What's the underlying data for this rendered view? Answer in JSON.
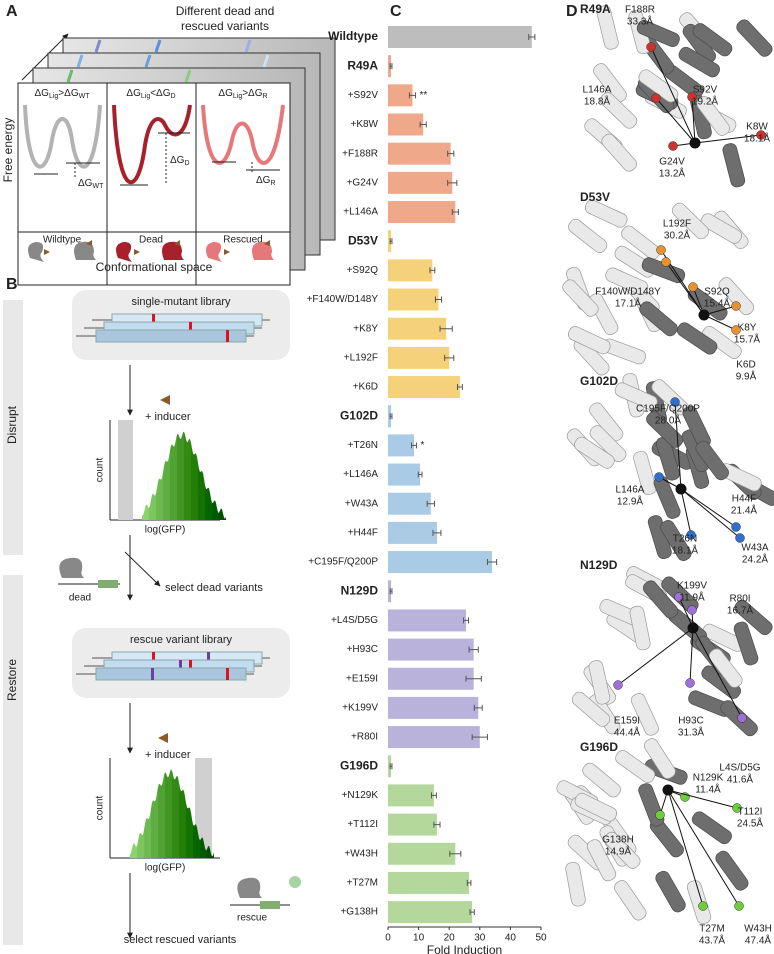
{
  "panel_a": {
    "label": "A",
    "top_caption": [
      "Different dead and",
      "rescued variants"
    ],
    "y_label": "Free energy",
    "x_label": "Conformational space",
    "states": [
      {
        "name": "Wildtype",
        "condition": [
          "ΔG",
          "Lig",
          ">ΔG",
          "WT"
        ],
        "gap": [
          "ΔG",
          "WT"
        ]
      },
      {
        "name": "Dead",
        "condition": [
          "ΔG",
          "Lig",
          "<ΔG",
          "D"
        ],
        "gap": [
          "ΔG",
          "D"
        ]
      },
      {
        "name": "Rescued",
        "condition": [
          "ΔG",
          "Lig",
          ">ΔG",
          "R"
        ],
        "gap": [
          "ΔG",
          "R"
        ]
      }
    ]
  },
  "panel_b": {
    "label": "B",
    "stages": [
      {
        "name": "Disrupt",
        "library": "single-mutant library",
        "inducer": "+ inducer",
        "y_label": "count",
        "x_label": "log(GFP)",
        "icon_label": "dead",
        "selection": "select dead variants"
      },
      {
        "name": "Restore",
        "library": "rescue variant library",
        "inducer": "+ inducer",
        "y_label": "count",
        "x_label": "log(GFP)",
        "icon_label": "rescue",
        "selection": "select rescued variants"
      }
    ]
  },
  "chart_data": {
    "type": "bar",
    "orientation": "horizontal",
    "panel_label": "C",
    "categories": [
      "Wildtype",
      "R49A",
      "+S92V",
      "+K8W",
      "+F188R",
      "+G24V",
      "+L146A",
      "D53V",
      "+S92Q",
      "+F140W/D148Y",
      "+K8Y",
      "+L192F",
      "+K6D",
      "G102D",
      "+T26N",
      "+L146A",
      "+W43A",
      "+H44F",
      "+C195F/Q200P",
      "N129D",
      "+L4S/D5G",
      "+H93C",
      "+E159I",
      "+K199V",
      "+R80I",
      "G196D",
      "+N129K",
      "+T112I",
      "+W43H",
      "+T27M",
      "+G138H"
    ],
    "values": [
      47,
      1,
      8,
      11.5,
      20.5,
      21,
      22,
      1,
      14.5,
      16.5,
      19,
      20,
      23.5,
      1,
      8.5,
      10.5,
      14,
      16,
      34,
      1,
      25.5,
      28,
      28,
      29.5,
      30,
      1,
      15,
      16,
      22,
      26.5,
      27.5
    ],
    "errors": [
      1,
      0.3,
      1,
      1,
      1,
      1.5,
      1,
      0.3,
      0.8,
      1,
      2,
      1.5,
      0.8,
      0.3,
      0.8,
      0.6,
      1.2,
      1.3,
      1.5,
      0.3,
      0.8,
      1.5,
      2.5,
      1.3,
      2.5,
      0.3,
      0.8,
      1,
      1.8,
      0.6,
      0.7
    ],
    "significance": [
      null,
      null,
      "**",
      null,
      null,
      null,
      null,
      null,
      null,
      null,
      null,
      null,
      null,
      null,
      "*",
      null,
      null,
      null,
      null,
      null,
      null,
      null,
      null,
      null,
      null,
      null,
      null,
      null,
      null,
      null,
      null
    ],
    "colors": [
      "#bdbdbd",
      "#f0a88a",
      "#f0a88a",
      "#f0a88a",
      "#f0a88a",
      "#f0a88a",
      "#f0a88a",
      "#f5d27a",
      "#f5d27a",
      "#f5d27a",
      "#f5d27a",
      "#f5d27a",
      "#f5d27a",
      "#a9cbe6",
      "#a9cbe6",
      "#a9cbe6",
      "#a9cbe6",
      "#a9cbe6",
      "#a9cbe6",
      "#b9b3db",
      "#b9b3db",
      "#b9b3db",
      "#b9b3db",
      "#b9b3db",
      "#b9b3db",
      "#b4d89b",
      "#b4d89b",
      "#b4d89b",
      "#b4d89b",
      "#b4d89b",
      "#b4d89b"
    ],
    "xlim": [
      0,
      50
    ],
    "xticks": [
      0,
      10,
      20,
      30,
      40,
      50
    ],
    "x_label": "Fold Induction"
  },
  "panel_d": {
    "label": "D",
    "structures": [
      {
        "mutant": "R49A",
        "sites": [
          {
            "name": "F188R",
            "distance": "33.3Å"
          },
          {
            "name": "L146A",
            "distance": "18.8Å"
          },
          {
            "name": "S92V",
            "distance": "19.2Å"
          },
          {
            "name": "K8W",
            "distance": "18.1Å"
          },
          {
            "name": "G24V",
            "distance": "13.2Å"
          }
        ]
      },
      {
        "mutant": "D53V",
        "sites": [
          {
            "name": "L192F",
            "distance": "30.2Å"
          },
          {
            "name": "F140W/D148Y",
            "distance": "17.1Å"
          },
          {
            "name": "S92Q",
            "distance": "15.4Å"
          },
          {
            "name": "K8Y",
            "distance": "15.7Å"
          },
          {
            "name": "K6D",
            "distance": "9.9Å"
          }
        ]
      },
      {
        "mutant": "G102D",
        "sites": [
          {
            "name": "C195F/Q200P",
            "distance": "28.0Å"
          },
          {
            "name": "L146A",
            "distance": "12.9Å"
          },
          {
            "name": "H44F",
            "distance": "21.4Å"
          },
          {
            "name": "T26N",
            "distance": "18.1Å"
          },
          {
            "name": "W43A",
            "distance": "24.2Å"
          }
        ]
      },
      {
        "mutant": "N129D",
        "sites": [
          {
            "name": "K199V",
            "distance": "11.9Å"
          },
          {
            "name": "R80I",
            "distance": "16.7Å"
          },
          {
            "name": "E159I",
            "distance": "44.4Å"
          },
          {
            "name": "H93C",
            "distance": "31.3Å"
          },
          {
            "name": "L4S/D5G",
            "distance": "41.6Å"
          }
        ]
      },
      {
        "mutant": "G196D",
        "sites": [
          {
            "name": "N129K",
            "distance": "11.4Å"
          },
          {
            "name": "T112I",
            "distance": "24.5Å"
          },
          {
            "name": "G138H",
            "distance": "14.9Å"
          },
          {
            "name": "T27M",
            "distance": "43.7Å"
          },
          {
            "name": "W43H",
            "distance": "47.4Å"
          }
        ]
      }
    ]
  }
}
